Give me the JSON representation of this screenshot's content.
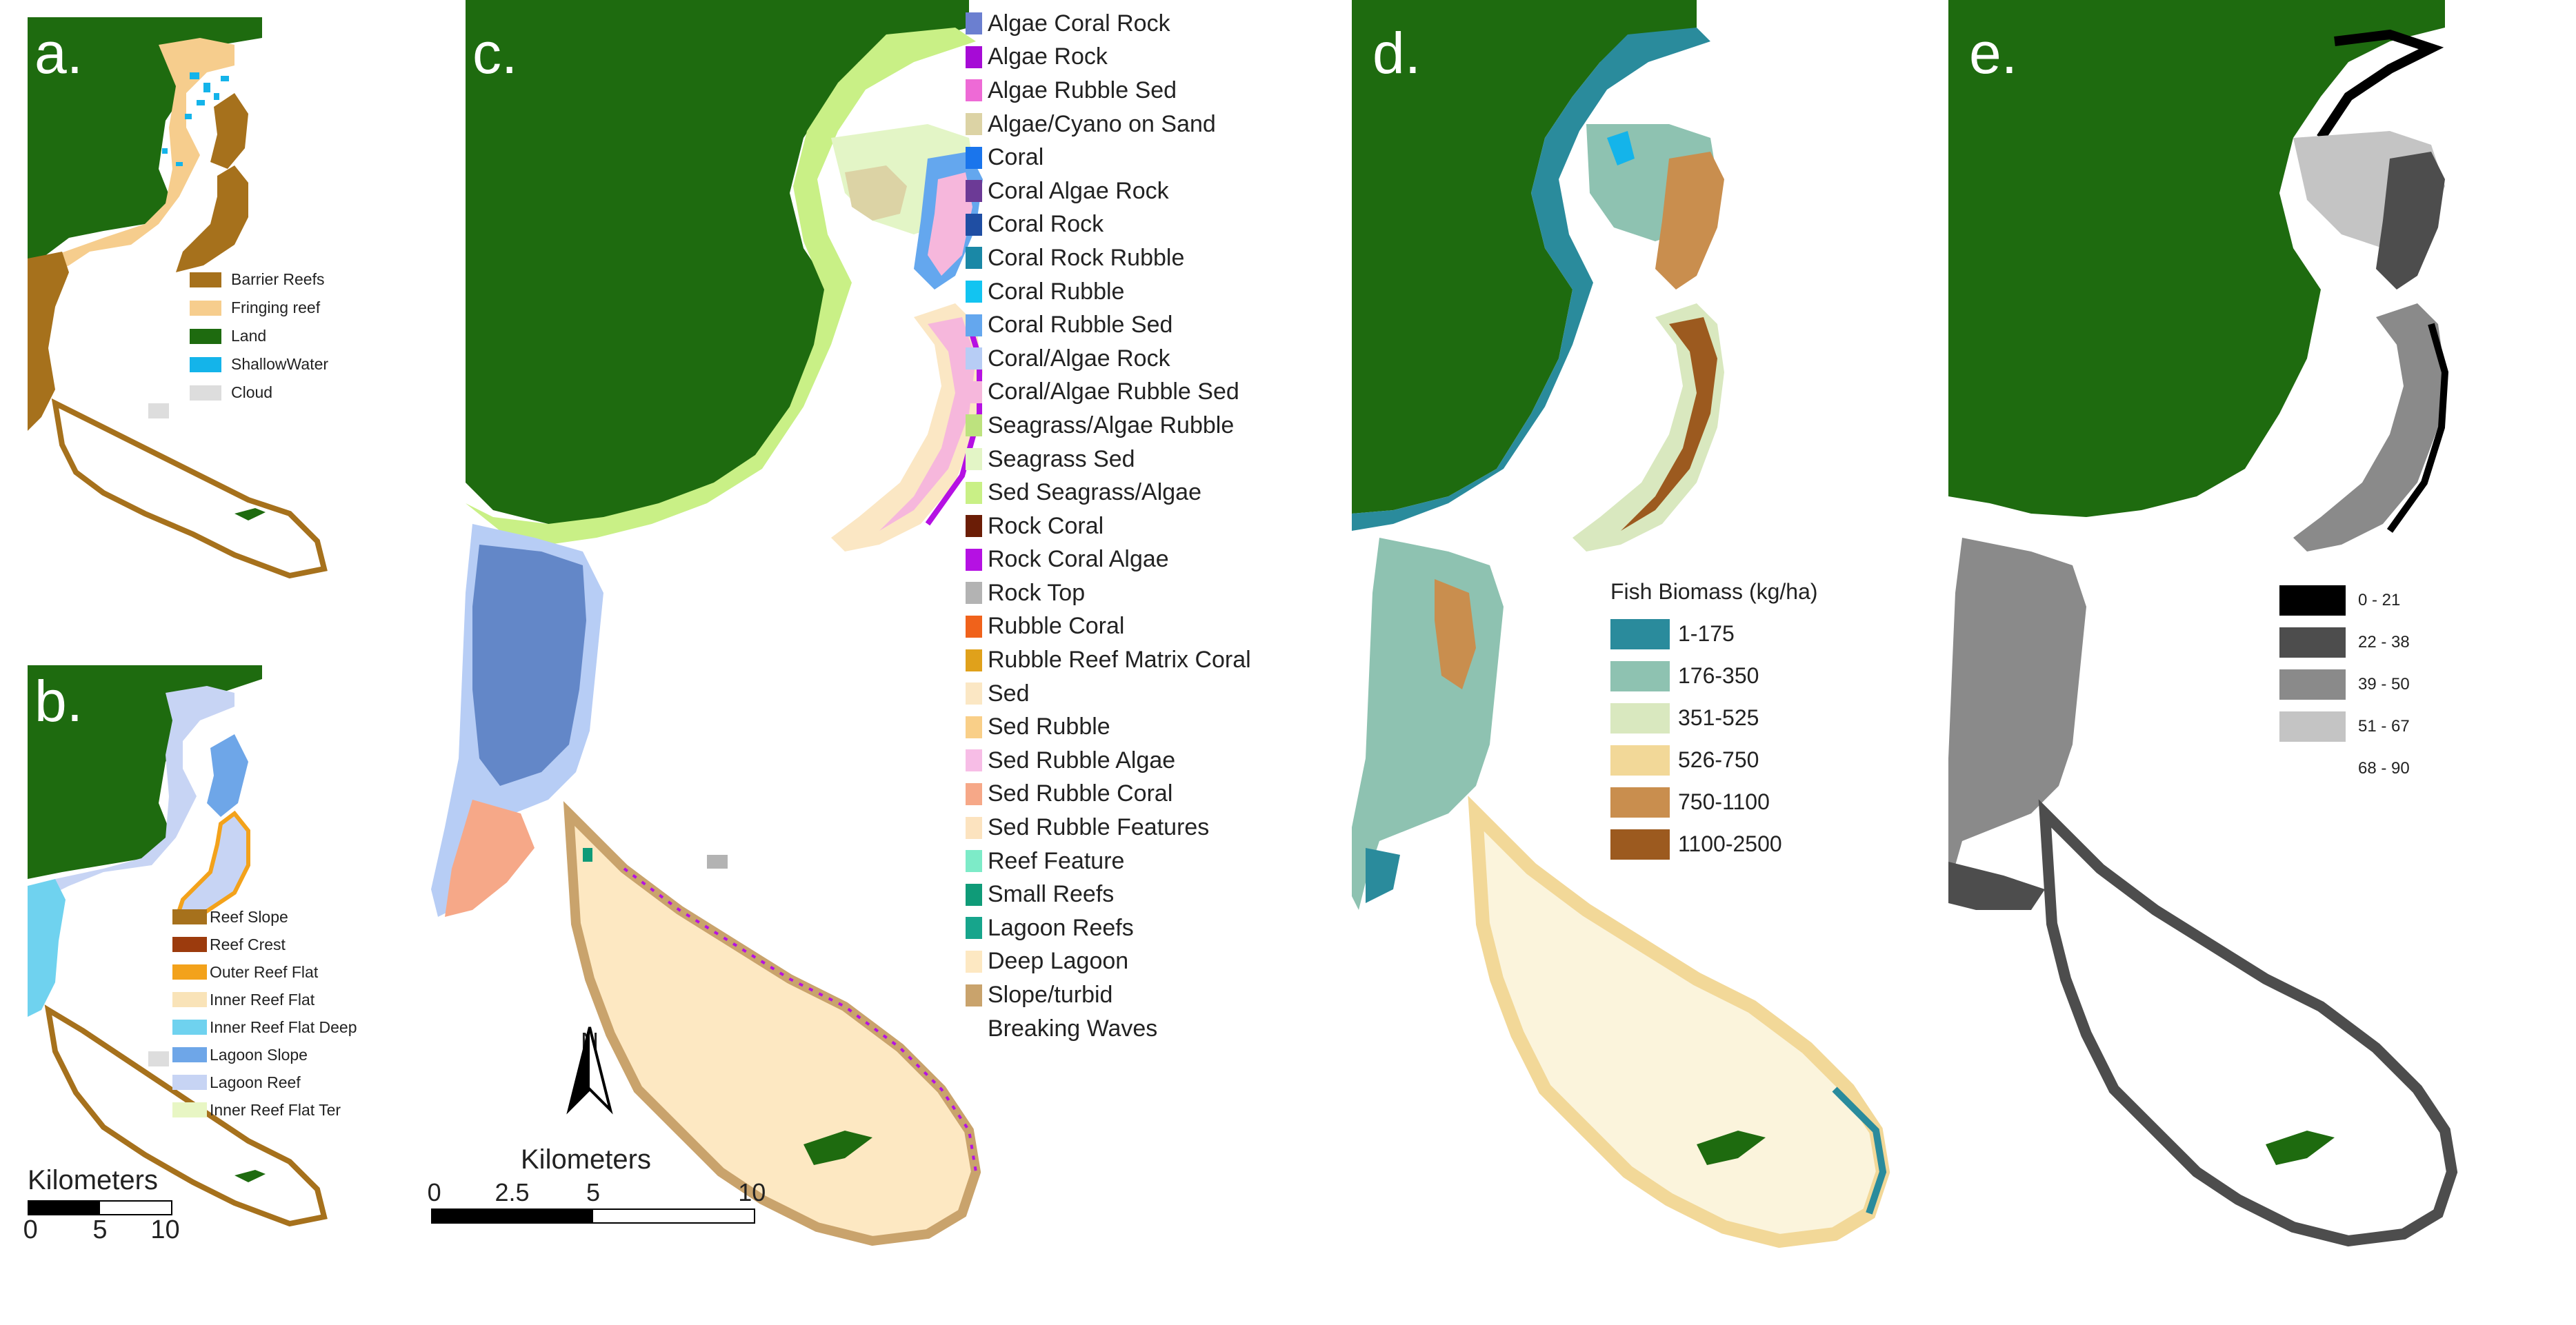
{
  "panels": {
    "a": {
      "label": "a.",
      "legend": [
        {
          "label": "Barrier Reefs",
          "color": "#a6711c"
        },
        {
          "label": "Fringing reef",
          "color": "#f6cd8d"
        },
        {
          "label": "Land",
          "color": "#1e6b0f"
        },
        {
          "label": "ShallowWater",
          "color": "#14b4ea"
        },
        {
          "label": "Cloud",
          "color": "#dddddd"
        }
      ]
    },
    "b": {
      "label": "b.",
      "legend": [
        {
          "label": "Reef Slope",
          "color": "#a6711c"
        },
        {
          "label": "Reef Crest",
          "color": "#9c3b0d"
        },
        {
          "label": "Outer Reef Flat",
          "color": "#f3a21b"
        },
        {
          "label": "Inner Reef Flat",
          "color": "#f9e3b8"
        },
        {
          "label": "Inner Reef Flat Deep",
          "color": "#6fd2ef"
        },
        {
          "label": "Lagoon Slope",
          "color": "#6ea6e8"
        },
        {
          "label": "Lagoon Reef",
          "color": "#c7d4f4"
        },
        {
          "label": "Inner Reef Flat Ter",
          "color": "#e8f6c4"
        }
      ],
      "scale": {
        "title": "Kilometers",
        "ticks": [
          "0",
          "5",
          "10"
        ]
      }
    },
    "c": {
      "label": "c.",
      "legend": [
        {
          "label": "Algae Coral Rock",
          "color": "#6b7fd0"
        },
        {
          "label": "Algae Rock",
          "color": "#a60bd6"
        },
        {
          "label": "Algae Rubble Sed",
          "color": "#ee6ad6"
        },
        {
          "label": "Algae/Cyano on Sand",
          "color": "#dcd3a5"
        },
        {
          "label": "Coral",
          "color": "#1a75ec"
        },
        {
          "label": "Coral Algae Rock",
          "color": "#6c3a96"
        },
        {
          "label": "Coral Rock",
          "color": "#1f4ea3"
        },
        {
          "label": "Coral Rock Rubble",
          "color": "#1a88a6"
        },
        {
          "label": "Coral Rubble",
          "color": "#12c4f1"
        },
        {
          "label": "Coral Rubble Sed",
          "color": "#64a7ee"
        },
        {
          "label": "Coral/Algae Rock",
          "color": "#b7cdf5"
        },
        {
          "label": "Coral/Algae Rubble Sed",
          "color": "#f6b7dc"
        },
        {
          "label": "Seagrass/Algae Rubble",
          "color": "#bde27e"
        },
        {
          "label": "Seagrass Sed",
          "color": "#e3f5c6"
        },
        {
          "label": "Sed  Seagrass/Algae",
          "color": "#c9f086"
        },
        {
          "label": "Rock Coral",
          "color": "#6b1d06"
        },
        {
          "label": "Rock Coral Algae",
          "color": "#b511e3"
        },
        {
          "label": "Rock Top",
          "color": "#b3b3b3"
        },
        {
          "label": "Rubble Coral",
          "color": "#f0621b"
        },
        {
          "label": "Rubble Reef Matrix Coral",
          "color": "#e0a11b"
        },
        {
          "label": "Sed",
          "color": "#fbe7c4"
        },
        {
          "label": "Sed Rubble",
          "color": "#f9cf88"
        },
        {
          "label": "Sed Rubble Algae",
          "color": "#f7bde6"
        },
        {
          "label": "Sed Rubble Coral",
          "color": "#f6a888"
        },
        {
          "label": "Sed Rubble Features",
          "color": "#fce3bf"
        },
        {
          "label": "Reef Feature",
          "color": "#7debc8"
        },
        {
          "label": "Small Reefs",
          "color": "#0f9b78"
        },
        {
          "label": "Lagoon Reefs",
          "color": "#17a58c"
        },
        {
          "label": "Deep Lagoon",
          "color": "#fde8c2"
        },
        {
          "label": "Slope/turbid",
          "color": "#c9a36c"
        },
        {
          "label": "Breaking Waves",
          "color": ""
        }
      ],
      "scale": {
        "title": "Kilometers",
        "ticks": [
          "0",
          "2.5",
          "5",
          "10"
        ]
      },
      "north": "N"
    },
    "d": {
      "label": "d.",
      "legend_title": "Fish Biomass (kg/ha)",
      "legend": [
        {
          "label": "1-175",
          "color": "#2a8b9c"
        },
        {
          "label": "176-350",
          "color": "#8ec2b1"
        },
        {
          "label": "351-525",
          "color": "#d9e8bf"
        },
        {
          "label": "526-750",
          "color": "#f2d898"
        },
        {
          "label": "750-1100",
          "color": "#c98e4e"
        },
        {
          "label": "1100-2500",
          "color": "#9c5a1f"
        }
      ]
    },
    "e": {
      "label": "e.",
      "legend": [
        {
          "label": "0 - 21",
          "color": "#000000"
        },
        {
          "label": "22 - 38",
          "color": "#4d4d4d"
        },
        {
          "label": "39 - 50",
          "color": "#8a8a8a"
        },
        {
          "label": "51 - 67",
          "color": "#c4c4c4"
        },
        {
          "label": "68 - 90",
          "color": "#ffffff"
        }
      ]
    }
  },
  "colors": {
    "land": "#1e6b0f"
  }
}
